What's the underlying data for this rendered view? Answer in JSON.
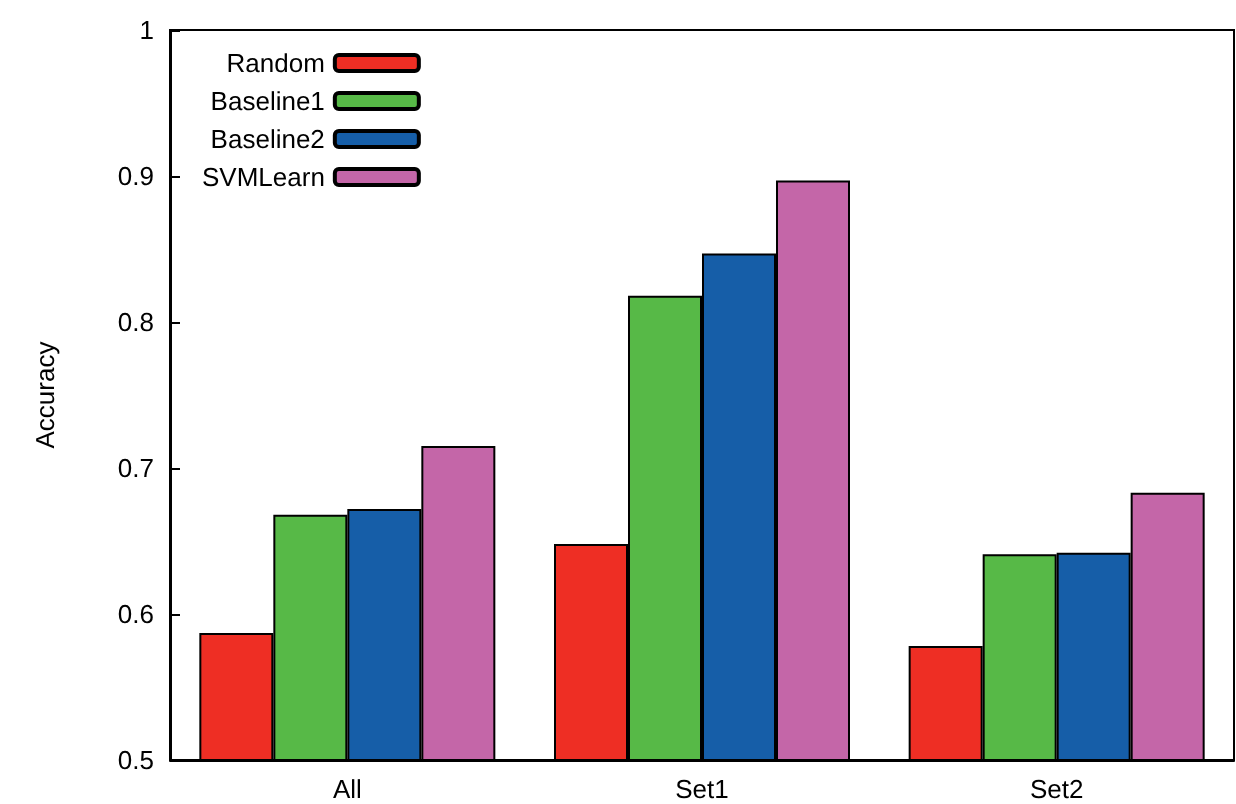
{
  "chart_data": {
    "type": "bar",
    "ylabel": "Accuracy",
    "categories": [
      "All",
      "Set1",
      "Set2"
    ],
    "series": [
      {
        "name": "Random",
        "color": "#ee2e24",
        "values": [
          0.587,
          0.648,
          0.578
        ]
      },
      {
        "name": "Baseline1",
        "color": "#57b947",
        "values": [
          0.668,
          0.818,
          0.641
        ]
      },
      {
        "name": "Baseline2",
        "color": "#165ea8",
        "values": [
          0.672,
          0.847,
          0.642
        ]
      },
      {
        "name": "SVMLearn",
        "color": "#c466a8",
        "values": [
          0.715,
          0.897,
          0.683
        ]
      }
    ],
    "ylim": [
      0.5,
      1
    ],
    "yticks": [
      0.5,
      0.6,
      0.7,
      0.8,
      0.9,
      1
    ],
    "grid": false,
    "legend": "top left"
  }
}
